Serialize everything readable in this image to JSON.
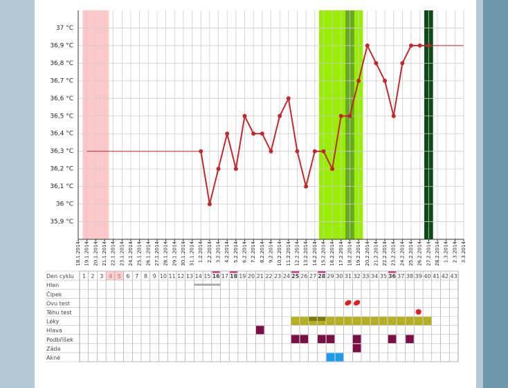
{
  "chart_data": {
    "type": "line",
    "categories": [
      "18.1.2014",
      "19.1.2014",
      "20.1.2014",
      "21.1.2014",
      "22.1.2014",
      "23.1.2014",
      "24.1.2014",
      "25.1.2014",
      "26.1.2014",
      "27.1.2014",
      "28.1.2014",
      "29.1.2014",
      "30.1.2014",
      "31.1.2014",
      "1.2.2014",
      "2.2.2014",
      "3.2.2014",
      "4.2.2014",
      "5.2.2014",
      "6.2.2014",
      "7.2.2014",
      "8.2.2014",
      "9.2.2014",
      "10.2.2014",
      "11.2.2014",
      "12.2.2014",
      "13.2.2014",
      "14.2.2014",
      "15.2.2014",
      "16.2.2014",
      "17.2.2014",
      "18.2.2014",
      "19.2.2014",
      "20.2.2014",
      "21.2.2014",
      "22.2.2014",
      "23.2.2014",
      "24.2.2014",
      "25.2.2014",
      "26.2.2014",
      "27.2.2014",
      "28.2.2014",
      "1.3.2014",
      "2.3.2014",
      "3.3.2014"
    ],
    "series": [
      {
        "color": "#c0282c",
        "width": 2,
        "markers": true,
        "values": [
          null,
          null,
          null,
          null,
          null,
          null,
          null,
          null,
          null,
          null,
          null,
          null,
          null,
          null,
          36.3,
          36.0,
          36.2,
          36.4,
          36.2,
          36.5,
          36.4,
          36.4,
          36.3,
          36.5,
          36.6,
          36.3,
          36.1,
          36.3,
          36.3,
          36.2,
          36.5,
          36.5,
          36.7,
          36.9,
          36.8,
          36.7,
          36.5,
          36.8,
          36.9,
          36.9,
          36.9,
          null,
          null,
          null,
          null
        ]
      },
      {
        "color": "#c0282c",
        "width": 1,
        "markers": false,
        "values": [
          null,
          36.3,
          36.3,
          36.3,
          36.3,
          36.3,
          36.3,
          36.3,
          36.3,
          36.3,
          36.3,
          36.3,
          36.3,
          36.3,
          36.3,
          null,
          null,
          null,
          null,
          null,
          null,
          null,
          null,
          null,
          null,
          null,
          null,
          null,
          null,
          null,
          null,
          null,
          null,
          null,
          null,
          null,
          null,
          null,
          null,
          null,
          36.9,
          36.9,
          36.9,
          36.9,
          36.9
        ]
      }
    ],
    "bands": [
      {
        "from": "19.1.2014",
        "to": "21.1.2014",
        "color": "#ffc8c8"
      },
      {
        "from": "15.2.2014",
        "to": "19.2.2014",
        "color": "#99ee00"
      },
      {
        "from": "18.2.2014",
        "to": "18.2.2014",
        "color": "#66aa22"
      },
      {
        "from": "27.2.2014",
        "to": "27.2.2014",
        "color": "#0a4a14"
      }
    ],
    "ylim": [
      35.8,
      37.1
    ],
    "yticks": [
      {
        "value": 35.9,
        "label": "35,9 °C"
      },
      {
        "value": 36,
        "label": "36 °C"
      },
      {
        "value": 36.1,
        "label": "36,1 °C"
      },
      {
        "value": 36.2,
        "label": "36,2 °C"
      },
      {
        "value": 36.3,
        "label": "36,3 °C"
      },
      {
        "value": 36.4,
        "label": "36,4 °C"
      },
      {
        "value": 36.5,
        "label": "36,5 °C"
      },
      {
        "value": 36.6,
        "label": "36,6 °C"
      },
      {
        "value": 36.7,
        "label": "36,7 °C"
      },
      {
        "value": 36.8,
        "label": "36,8 °C"
      },
      {
        "value": 36.9,
        "label": "36,9 °C"
      },
      {
        "value": 37,
        "label": "37 °C"
      }
    ],
    "grid": true
  },
  "table": {
    "header": "Den cyklu",
    "days": [
      1,
      2,
      3,
      4,
      5,
      6,
      7,
      8,
      9,
      10,
      11,
      12,
      13,
      14,
      15,
      16,
      17,
      18,
      19,
      20,
      21,
      22,
      23,
      24,
      25,
      26,
      27,
      28,
      29,
      30,
      31,
      32,
      33,
      34,
      35,
      36,
      37,
      38,
      39,
      40,
      41,
      42,
      43
    ],
    "highlight_days": [
      4,
      5
    ],
    "marked_days": [
      16,
      18,
      25,
      28,
      36
    ],
    "rows": [
      {
        "label": "Hlen",
        "kind": "bar",
        "color": "#aaaaaa",
        "days": [
          14,
          15,
          16
        ]
      },
      {
        "label": "Čípek",
        "kind": "cell",
        "color": "#888888",
        "days": []
      },
      {
        "label": "Ovu test",
        "kind": "drop",
        "color": "#e02020",
        "days": [
          31,
          32
        ]
      },
      {
        "label": "Těhu test",
        "kind": "flower",
        "color": "#e02020",
        "days": [
          39
        ]
      },
      {
        "label": "Léky",
        "kind": "cell",
        "color": "#b5b020",
        "days": [
          25,
          26,
          27,
          28,
          29,
          30,
          31,
          32,
          33,
          34,
          35,
          36,
          37,
          38,
          39,
          40
        ],
        "accent_days": [
          27,
          28
        ],
        "accent_color": "#7d7a14"
      },
      {
        "label": "Hlava",
        "kind": "cell",
        "color": "#7a0f45",
        "days": [
          21
        ]
      },
      {
        "label": "Podbříšek",
        "kind": "cell",
        "color": "#7a0f45",
        "days": [
          25,
          26,
          28,
          29,
          32,
          36,
          38
        ]
      },
      {
        "label": "Záda",
        "kind": "cell",
        "color": "#7a0f45",
        "days": [
          32
        ]
      },
      {
        "label": "Akné",
        "kind": "cell",
        "color": "#1e9be8",
        "days": [
          29,
          30
        ]
      }
    ]
  }
}
